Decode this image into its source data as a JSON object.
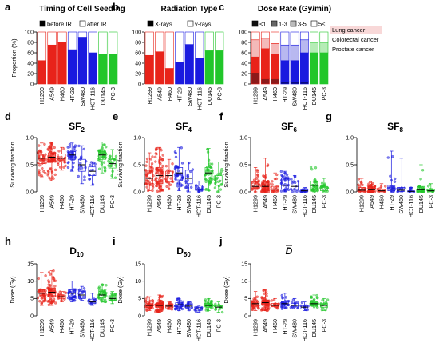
{
  "colors": {
    "lung": "#e8231a",
    "colorectal": "#1a1adf",
    "prostate": "#22c62a",
    "lung_light": "#f4b9b9",
    "colorectal_light": "#b8b8f0",
    "prostate_light": "#b5ecb6",
    "dark_red": "#8c1a1a",
    "dark_blue": "#0a0a80",
    "dark_green": "#0f6e17"
  },
  "legend_cancer": {
    "lung": "Lung cancer",
    "colorectal": "Colorectal cancer",
    "prostate": "Prostate cancer"
  },
  "chart_data": [
    {
      "id": "a",
      "label": "a",
      "type": "bar",
      "stacked": true,
      "title": "Timing of Cell Seeding",
      "ylabel": "Proportion (%)",
      "ylim": [
        0,
        100
      ],
      "yticks": [
        0,
        20,
        40,
        60,
        80,
        100
      ],
      "categories": [
        "H1299",
        "A549",
        "H460",
        "HT-29",
        "SW480",
        "HCT-116",
        "DU145",
        "PC-3"
      ],
      "series": [
        {
          "name": "before IR",
          "values": [
            45,
            75,
            80,
            66,
            90,
            60,
            57,
            57
          ]
        },
        {
          "name": "after IR",
          "values": [
            55,
            25,
            20,
            34,
            10,
            40,
            43,
            43
          ]
        }
      ]
    },
    {
      "id": "b",
      "label": "b",
      "type": "bar",
      "stacked": true,
      "title": "Radiation Type",
      "ylabel": "",
      "ylim": [
        0,
        100
      ],
      "yticks": [
        0,
        20,
        40,
        60,
        80,
        100
      ],
      "categories": [
        "H1299",
        "A549",
        "H460",
        "HT-29",
        "SW480",
        "HCT-116",
        "DU145",
        "PC-3"
      ],
      "series": [
        {
          "name": "X-rays",
          "values": [
            55,
            62,
            30,
            42,
            76,
            50,
            64,
            64
          ]
        },
        {
          "name": "γ-rays",
          "values": [
            45,
            38,
            70,
            58,
            24,
            50,
            36,
            36
          ]
        }
      ]
    },
    {
      "id": "c",
      "label": "c",
      "type": "bar",
      "stacked": true,
      "title": "Dose Rate (Gy/min)",
      "ylabel": "",
      "ylim": [
        0,
        100
      ],
      "yticks": [
        0,
        20,
        40,
        60,
        80,
        100
      ],
      "categories": [
        "H1299",
        "A549",
        "H460",
        "HT-29",
        "SW480",
        "HCT-116",
        "DU145",
        "PC-3"
      ],
      "series": [
        {
          "name": "<1",
          "values": [
            22,
            10,
            10,
            5,
            5,
            5,
            0,
            0
          ]
        },
        {
          "name": "1-3",
          "values": [
            30,
            58,
            48,
            40,
            40,
            55,
            60,
            60
          ]
        },
        {
          "name": "3-5",
          "values": [
            33,
            20,
            20,
            30,
            30,
            25,
            20,
            20
          ]
        },
        {
          "name": "5≤",
          "values": [
            15,
            12,
            22,
            25,
            25,
            15,
            20,
            20
          ]
        }
      ]
    },
    {
      "id": "d",
      "label": "d",
      "type": "scatter",
      "title": "SF",
      "title_sub": "2",
      "ylabel": "Surviving fraction",
      "ylim": [
        0,
        1.0
      ],
      "yticks": [
        0,
        0.5,
        1.0
      ],
      "categories": [
        "H1299",
        "A549",
        "H460",
        "HT-29",
        "SW480",
        "HCT-116",
        "DU145",
        "PC-3"
      ],
      "median": [
        0.62,
        0.64,
        0.62,
        0.68,
        0.5,
        0.38,
        0.68,
        0.52
      ],
      "q1": [
        0.52,
        0.55,
        0.55,
        0.6,
        0.38,
        0.3,
        0.6,
        0.44
      ],
      "q3": [
        0.7,
        0.72,
        0.7,
        0.74,
        0.6,
        0.46,
        0.74,
        0.6
      ],
      "min": [
        0.28,
        0.2,
        0.4,
        0.38,
        0.15,
        0.12,
        0.35,
        0.25
      ],
      "max": [
        0.9,
        0.92,
        0.82,
        0.9,
        0.85,
        0.55,
        0.92,
        0.78
      ],
      "n": [
        40,
        70,
        20,
        35,
        15,
        12,
        40,
        20
      ]
    },
    {
      "id": "e",
      "label": "e",
      "type": "scatter",
      "title": "SF",
      "title_sub": "4",
      "ylabel": "Surviving fraction",
      "ylim": [
        0,
        1.0
      ],
      "yticks": [
        0,
        0.5,
        1.0
      ],
      "categories": [
        "H1299",
        "A549",
        "H460",
        "HT-29",
        "SW480",
        "HCT-116",
        "DU145",
        "PC-3"
      ],
      "median": [
        0.25,
        0.3,
        0.3,
        0.35,
        0.25,
        0.05,
        0.35,
        0.2
      ],
      "q1": [
        0.15,
        0.15,
        0.18,
        0.22,
        0.15,
        0.03,
        0.22,
        0.12
      ],
      "q3": [
        0.4,
        0.45,
        0.38,
        0.45,
        0.4,
        0.12,
        0.45,
        0.3
      ],
      "min": [
        0.02,
        0.0,
        0.05,
        0.02,
        0.0,
        0.0,
        0.02,
        0.0
      ],
      "max": [
        0.72,
        0.82,
        0.6,
        0.82,
        0.55,
        0.2,
        0.8,
        0.55
      ],
      "n": [
        40,
        70,
        20,
        35,
        15,
        12,
        40,
        20
      ]
    },
    {
      "id": "f",
      "label": "f",
      "type": "scatter",
      "title": "SF",
      "title_sub": "6",
      "ylabel": "Surviving fraction",
      "ylim": [
        0,
        1.0
      ],
      "yticks": [
        0,
        0.5,
        1.0
      ],
      "categories": [
        "H1299",
        "A549",
        "H460",
        "HT-29",
        "SW480",
        "HCT-116",
        "DU145",
        "PC-3"
      ],
      "median": [
        0.1,
        0.1,
        0.05,
        0.12,
        0.1,
        0.02,
        0.12,
        0.05
      ],
      "q1": [
        0.05,
        0.04,
        0.02,
        0.05,
        0.03,
        0.01,
        0.05,
        0.02
      ],
      "q3": [
        0.18,
        0.2,
        0.1,
        0.25,
        0.2,
        0.04,
        0.2,
        0.1
      ],
      "min": [
        0.0,
        0.0,
        0.0,
        0.0,
        0.0,
        0.0,
        0.0,
        0.0
      ],
      "max": [
        0.45,
        0.62,
        0.35,
        0.38,
        0.3,
        0.08,
        0.55,
        0.25
      ],
      "n": [
        30,
        60,
        15,
        30,
        12,
        10,
        35,
        18
      ]
    },
    {
      "id": "g",
      "label": "g",
      "type": "scatter",
      "title": "SF",
      "title_sub": "8",
      "ylabel": "",
      "ylim": [
        0,
        1.0
      ],
      "yticks": [
        0,
        0.5,
        1.0
      ],
      "categories": [
        "H1299",
        "A549",
        "H460",
        "HT-29",
        "SW480",
        "HCT-116",
        "DU145",
        "PC-3"
      ],
      "median": [
        0.03,
        0.04,
        0.02,
        0.05,
        0.03,
        0.01,
        0.04,
        0.02
      ],
      "q1": [
        0.01,
        0.01,
        0.01,
        0.02,
        0.01,
        0.0,
        0.01,
        0.01
      ],
      "q3": [
        0.08,
        0.1,
        0.05,
        0.12,
        0.08,
        0.02,
        0.1,
        0.05
      ],
      "min": [
        0.0,
        0.0,
        0.0,
        0.0,
        0.0,
        0.0,
        0.0,
        0.0
      ],
      "max": [
        0.25,
        0.2,
        0.15,
        0.75,
        0.62,
        0.08,
        0.5,
        0.15
      ],
      "n": [
        20,
        40,
        10,
        20,
        8,
        8,
        25,
        12
      ]
    },
    {
      "id": "h",
      "label": "h",
      "type": "scatter",
      "title": "D",
      "title_sub": "10",
      "ylabel": "Dose (Gy)",
      "ylim": [
        0,
        15
      ],
      "yticks": [
        0,
        5,
        10,
        15
      ],
      "categories": [
        "H1299",
        "A549",
        "H460",
        "HT-29",
        "SW480",
        "HCT-116",
        "DU145",
        "PC-3"
      ],
      "median": [
        6.5,
        6.8,
        5.5,
        6.5,
        6.0,
        4.0,
        6.0,
        5.0
      ],
      "q1": [
        5.5,
        5.5,
        5.0,
        5.5,
        5.0,
        3.5,
        5.2,
        4.5
      ],
      "q3": [
        7.5,
        8.0,
        6.0,
        7.5,
        7.0,
        4.8,
        7.0,
        5.8
      ],
      "min": [
        3.0,
        3.0,
        4.0,
        4.0,
        4.5,
        3.0,
        4.0,
        3.5
      ],
      "max": [
        12.5,
        13.0,
        7.0,
        10.0,
        8.5,
        6.5,
        9.0,
        7.0
      ],
      "n": [
        35,
        60,
        15,
        30,
        12,
        10,
        35,
        15
      ]
    },
    {
      "id": "i",
      "label": "i",
      "type": "scatter",
      "title": "D",
      "title_sub": "50",
      "ylabel": "Dose (Gy)",
      "ylim": [
        0,
        15
      ],
      "yticks": [
        0,
        5,
        10,
        15
      ],
      "categories": [
        "H1299",
        "A549",
        "H460",
        "HT-29",
        "SW480",
        "HCT-116",
        "DU145",
        "PC-3"
      ],
      "median": [
        3.0,
        3.0,
        2.8,
        3.2,
        2.8,
        2.0,
        3.0,
        2.5
      ],
      "q1": [
        2.5,
        2.5,
        2.3,
        2.6,
        2.3,
        1.6,
        2.5,
        2.0
      ],
      "q3": [
        3.5,
        3.6,
        3.2,
        3.8,
        3.3,
        2.4,
        3.6,
        3.0
      ],
      "min": [
        1.5,
        1.0,
        1.8,
        1.5,
        1.6,
        1.0,
        1.5,
        1.0
      ],
      "max": [
        5.5,
        6.0,
        4.0,
        5.0,
        4.0,
        3.0,
        5.0,
        4.0
      ],
      "n": [
        35,
        60,
        15,
        30,
        12,
        10,
        35,
        15
      ]
    },
    {
      "id": "j",
      "label": "j",
      "type": "scatter",
      "title": "D",
      "ylabel": "Dose (Gy)",
      "ylim": [
        0,
        15
      ],
      "yticks": [
        0,
        5,
        10,
        15
      ],
      "categories": [
        "H1299",
        "A549",
        "H460",
        "HT-29",
        "SW480",
        "HCT-116",
        "DU145",
        "PC-3"
      ],
      "median": [
        3.5,
        3.8,
        3.0,
        3.5,
        3.0,
        2.5,
        3.5,
        3.0
      ],
      "q1": [
        3.0,
        3.0,
        2.6,
        3.0,
        2.6,
        2.0,
        3.0,
        2.5
      ],
      "q3": [
        4.2,
        4.5,
        3.6,
        4.2,
        3.6,
        3.0,
        4.2,
        3.5
      ],
      "min": [
        1.5,
        1.5,
        2.0,
        2.0,
        2.0,
        1.5,
        2.0,
        1.5
      ],
      "max": [
        7.0,
        7.5,
        5.0,
        6.5,
        5.0,
        4.0,
        6.0,
        5.0
      ],
      "n": [
        35,
        60,
        15,
        30,
        12,
        10,
        35,
        15
      ]
    }
  ]
}
